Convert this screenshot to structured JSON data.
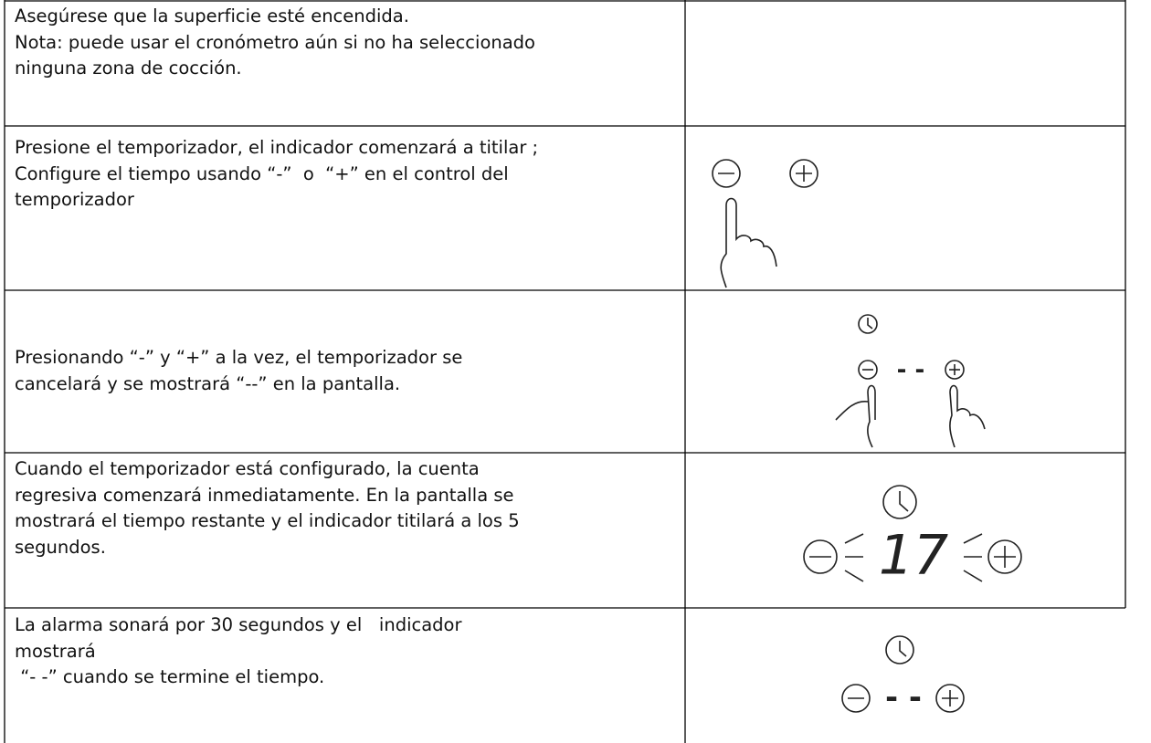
{
  "table": {
    "rows": [
      {
        "lines": [
          "Asegúrese que la superficie esté encendida.",
          "Nota: puede usar el cronómetro aún si no ha seleccionado",
          "ninguna zona de cocción."
        ]
      },
      {
        "lines": [
          "Presione el temporizador, el indicador comenzará a titilar ;",
          "Configure el tiempo usando “-”  o  “+” en el control del",
          "temporizador"
        ]
      },
      {
        "lines": [
          "Presionando “-” y “+” a la vez, el temporizador se",
          "cancelará y se mostrará “--” en la pantalla."
        ],
        "display": "- -"
      },
      {
        "lines": [
          "Cuando el temporizador está configurado, la cuenta",
          "regresiva comenzará inmediatamente. En la pantalla se",
          "mostrará el tiempo restante y el indicador titilará a los 5",
          "segundos."
        ],
        "display": "17"
      },
      {
        "lines": [
          "La alarma sonará por 30 segundos y el   indicador",
          "mostrará",
          " “- -” cuando se termine el tiempo."
        ],
        "display": "- -"
      }
    ]
  }
}
